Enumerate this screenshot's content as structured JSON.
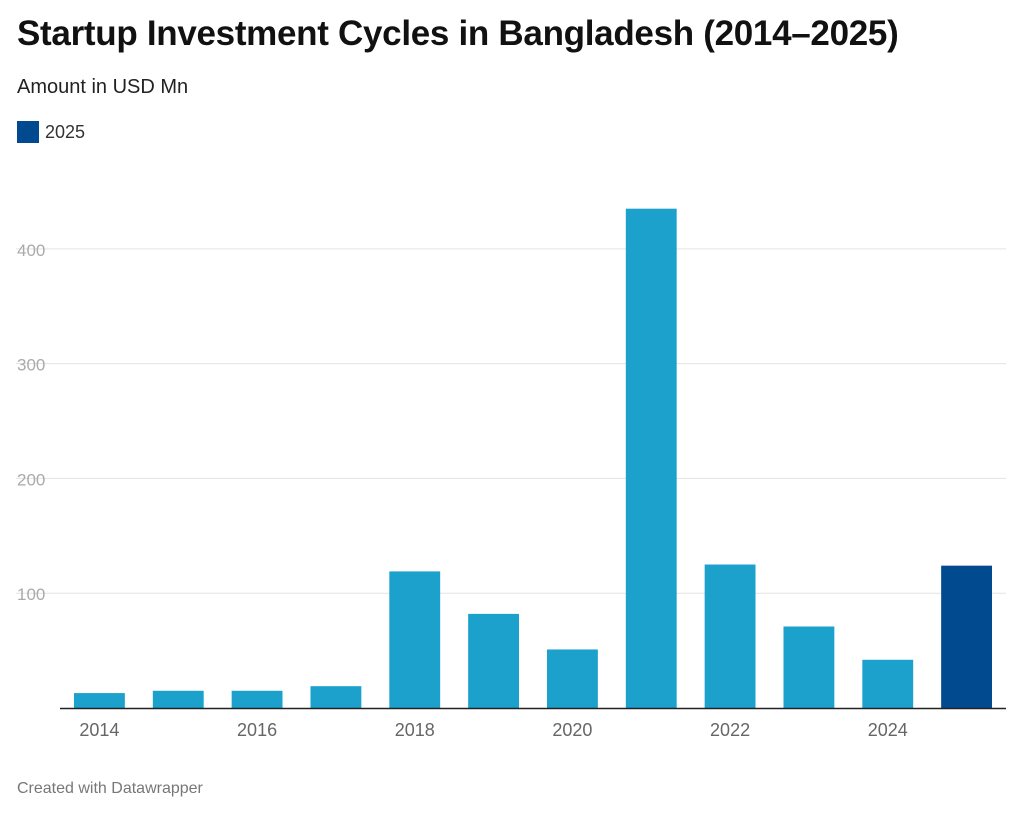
{
  "title": "Startup Investment Cycles in Bangladesh (2014–2025)",
  "subtitle": "Amount in USD Mn",
  "legend": {
    "label": "2025",
    "color": "#014a8f"
  },
  "footer": "Created with Datawrapper",
  "colors": {
    "bar": "#1ba1cb",
    "highlight": "#014a8f",
    "grid": "#e3e3e3",
    "tick_label": "#aaaaaa",
    "x_label": "#666666",
    "baseline": "#222222"
  },
  "chart_data": {
    "type": "bar",
    "title": "Startup Investment Cycles in Bangladesh (2014–2025)",
    "subtitle": "Amount in USD Mn",
    "categories": [
      "2014",
      "2015",
      "2016",
      "2017",
      "2018",
      "2019",
      "2020",
      "2021",
      "2022",
      "2023",
      "2024",
      "2025"
    ],
    "values": [
      13,
      15,
      15,
      19,
      119,
      82,
      51,
      435,
      125,
      71,
      42,
      124
    ],
    "highlight": "2025",
    "x_tick_labels": [
      "2014",
      "2016",
      "2018",
      "2020",
      "2022",
      "2024"
    ],
    "y_ticks": [
      100,
      200,
      300,
      400
    ],
    "ylim": [
      0,
      460
    ],
    "xlabel": "",
    "ylabel": "",
    "grid": true
  }
}
